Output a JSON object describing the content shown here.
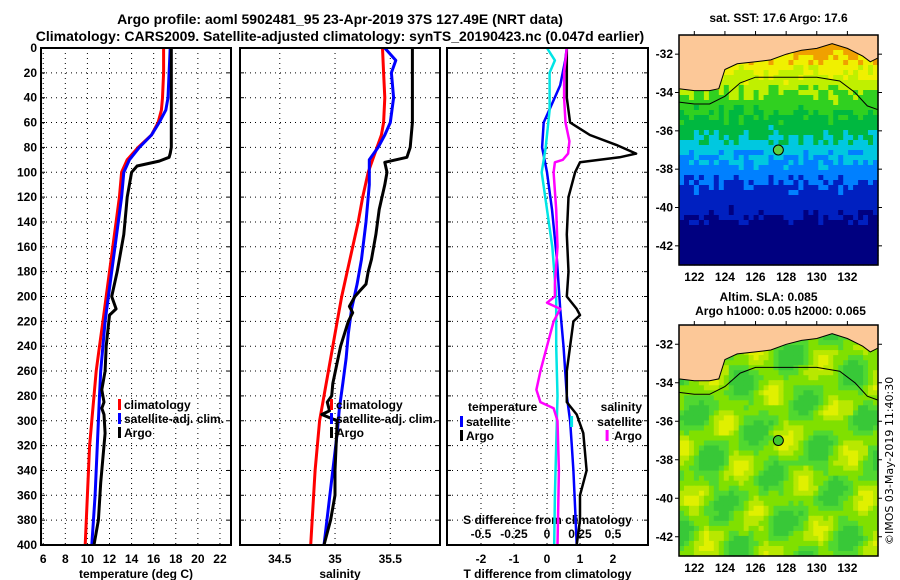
{
  "title": {
    "line1": "Argo profile: aoml 5902481_95 23-Apr-2019 37S 127.49E (NRT data)",
    "line2": "Climatology: CARS2009. Satellite-adjusted climatology: synTS_20190423.nc (0.047d earlier)"
  },
  "colors": {
    "climatology": "#ff0000",
    "satellite": "#0000ff",
    "argo": "#000000",
    "s_satellite": "#00e5e5",
    "s_argo": "#ff00ff",
    "land": "#fcc898"
  },
  "credit": "©IMOS 03-May-2019 11:40:30",
  "chart_data": [
    {
      "type": "line",
      "name": "temperature-profile",
      "xlabel": "temperature (deg C)",
      "ylabel": "",
      "xlim": [
        5.8,
        23
      ],
      "ylim": [
        400,
        0
      ],
      "xticks": [
        6,
        8,
        10,
        12,
        14,
        16,
        18,
        20,
        22
      ],
      "yticks": [
        0,
        20,
        40,
        60,
        80,
        100,
        120,
        140,
        160,
        180,
        200,
        220,
        240,
        260,
        280,
        300,
        320,
        340,
        360,
        380,
        400
      ],
      "grid": true,
      "legend": [
        {
          "label": "climatology",
          "series": "climatology"
        },
        {
          "label": "satellite-adj. clim.",
          "series": "satellite"
        },
        {
          "label": "Argo",
          "series": "argo"
        }
      ],
      "series": [
        {
          "name": "climatology",
          "x": [
            16.9,
            16.9,
            16.8,
            16.7,
            16.4,
            15.8,
            14.6,
            13.6,
            13.1,
            12.9,
            12.6,
            12.3,
            12.0,
            11.7,
            11.4,
            11.1,
            10.8,
            10.6,
            10.4,
            10.2,
            10.0,
            9.8
          ],
          "y": [
            0,
            20,
            40,
            50,
            60,
            70,
            80,
            90,
            100,
            120,
            140,
            160,
            180,
            200,
            220,
            240,
            260,
            280,
            300,
            320,
            360,
            400
          ]
        },
        {
          "name": "satellite",
          "x": [
            17.5,
            17.4,
            17.3,
            17.1,
            16.5,
            15.8,
            14.7,
            13.8,
            13.3,
            13.1,
            12.8,
            12.5,
            12.2,
            11.9,
            11.6,
            11.4,
            11.2,
            11.1,
            11.0,
            10.9,
            10.7,
            10.4
          ],
          "y": [
            0,
            20,
            40,
            50,
            60,
            70,
            80,
            90,
            100,
            120,
            140,
            160,
            180,
            200,
            220,
            240,
            260,
            280,
            300,
            320,
            360,
            400
          ]
        },
        {
          "name": "argo",
          "x": [
            17.6,
            17.6,
            17.6,
            17.6,
            17.5,
            17.4,
            16.5,
            14.5,
            14.0,
            13.8,
            13.6,
            13.5,
            13.3,
            12.9,
            12.7,
            12.2,
            12.6,
            12.0,
            11.7,
            11.6,
            11.3,
            11.5,
            11.3,
            11.5,
            11.6,
            11.4,
            11.2,
            11.0,
            10.6
          ],
          "y": [
            0,
            30,
            60,
            80,
            85,
            88,
            91,
            95,
            100,
            110,
            120,
            130,
            150,
            170,
            180,
            200,
            210,
            215,
            240,
            260,
            275,
            285,
            290,
            295,
            310,
            330,
            350,
            380,
            400
          ]
        }
      ]
    },
    {
      "type": "line",
      "name": "salinity-profile",
      "xlabel": "salinity",
      "ylabel": "",
      "xlim": [
        34.14,
        35.95
      ],
      "ylim": [
        400,
        0
      ],
      "xticks": [
        34.5,
        35,
        35.5
      ],
      "yticks": [
        0,
        20,
        40,
        60,
        80,
        100,
        120,
        140,
        160,
        180,
        200,
        220,
        240,
        260,
        280,
        300,
        320,
        340,
        360,
        380,
        400
      ],
      "grid": true,
      "legend": [
        {
          "label": "climatology",
          "series": "climatology"
        },
        {
          "label": "satellite-adj. clim.",
          "series": "satellite"
        },
        {
          "label": "Argo",
          "series": "argo"
        }
      ],
      "series": [
        {
          "name": "climatology",
          "x": [
            35.43,
            35.44,
            35.45,
            35.44,
            35.42,
            35.38,
            35.34,
            35.3,
            35.25,
            35.21,
            35.16,
            35.11,
            35.06,
            35.02,
            34.98,
            34.94,
            34.9,
            34.86,
            34.82,
            34.78
          ],
          "y": [
            0,
            20,
            40,
            60,
            70,
            80,
            90,
            100,
            120,
            140,
            160,
            180,
            200,
            220,
            240,
            260,
            280,
            300,
            340,
            400
          ]
        },
        {
          "name": "satellite",
          "x": [
            35.45,
            35.55,
            35.51,
            35.53,
            35.5,
            35.45,
            35.39,
            35.31,
            35.31,
            35.28,
            35.24,
            35.2,
            35.15,
            35.12,
            35.1,
            35.07,
            35.04,
            35.02,
            34.98,
            34.9
          ],
          "y": [
            0,
            10,
            20,
            40,
            60,
            70,
            80,
            90,
            110,
            140,
            170,
            190,
            210,
            230,
            250,
            270,
            290,
            310,
            340,
            400
          ]
        },
        {
          "name": "argo",
          "x": [
            35.7,
            35.7,
            35.7,
            35.68,
            35.65,
            35.45,
            35.47,
            35.45,
            35.4,
            35.37,
            35.33,
            35.3,
            35.28,
            35.23,
            35.18,
            35.13,
            35.16,
            35.12,
            35.05,
            34.98,
            34.97,
            34.93,
            34.95,
            34.88,
            35.02,
            35.0,
            35.0,
            34.96,
            34.9
          ],
          "y": [
            0,
            40,
            60,
            80,
            88,
            92,
            100,
            110,
            130,
            150,
            170,
            180,
            190,
            195,
            200,
            208,
            213,
            220,
            240,
            270,
            280,
            285,
            292,
            295,
            300,
            340,
            360,
            380,
            400
          ]
        }
      ]
    },
    {
      "type": "line",
      "name": "difference-profile",
      "xlabel": "T difference from climatology",
      "xlabel_top": "S difference from climatology",
      "xlim": [
        -3.03,
        3.06
      ],
      "xlim_s": [
        -0.757,
        0.765
      ],
      "ylim": [
        400,
        0
      ],
      "xticks": [
        -2,
        -1,
        0,
        1,
        2
      ],
      "xticks_s": [
        -0.5,
        -0.25,
        0,
        0.25,
        0.5
      ],
      "yticks": [
        0,
        20,
        40,
        60,
        80,
        100,
        120,
        140,
        160,
        180,
        200,
        220,
        240,
        260,
        280,
        300,
        320,
        340,
        360,
        380,
        400
      ],
      "grid": true,
      "legend": [
        {
          "heading": "temperature",
          "items": [
            {
              "label": "satellite",
              "series": "t_satellite"
            },
            {
              "label": "Argo",
              "series": "t_argo"
            }
          ]
        },
        {
          "heading": "salinity",
          "items": [
            {
              "label": "satellite",
              "series": "s_satellite"
            },
            {
              "label": "Argo",
              "series": "s_argo"
            }
          ]
        }
      ],
      "series": [
        {
          "name": "t_satellite",
          "axis": "T",
          "x": [
            0.6,
            0.55,
            0.4,
            0.15,
            -0.1,
            -0.15,
            0.0,
            0.15,
            0.3,
            0.4,
            0.5,
            0.55,
            0.6,
            0.7,
            0.75,
            0.8,
            0.85,
            0.9
          ],
          "y": [
            0,
            10,
            30,
            45,
            60,
            80,
            100,
            130,
            170,
            210,
            240,
            260,
            280,
            300,
            320,
            340,
            370,
            400
          ]
        },
        {
          "name": "t_argo",
          "axis": "T",
          "x": [
            0.6,
            0.6,
            0.7,
            1.3,
            2.1,
            2.7,
            2.2,
            1.0,
            0.85,
            0.65,
            0.6,
            0.65,
            0.6,
            0.9,
            1.0,
            0.8,
            0.6,
            0.6,
            0.9,
            1.1,
            1.2,
            1.0,
            1.0,
            0.9
          ],
          "y": [
            0,
            40,
            60,
            70,
            78,
            85,
            88,
            92,
            100,
            120,
            150,
            180,
            200,
            210,
            215,
            220,
            260,
            285,
            295,
            310,
            340,
            360,
            380,
            400
          ]
        },
        {
          "name": "s_satellite",
          "axis": "S",
          "x": [
            0.0,
            0.06,
            0.02,
            0.02,
            -0.01,
            -0.04,
            0.0,
            0.04,
            0.07,
            0.07,
            0.08,
            0.07,
            0.06,
            0.055
          ],
          "y": [
            0,
            10,
            20,
            50,
            80,
            100,
            130,
            160,
            200,
            240,
            280,
            320,
            360,
            400
          ]
        },
        {
          "name": "s_argo",
          "axis": "S",
          "x": [
            0.15,
            0.13,
            0.13,
            0.14,
            0.17,
            0.16,
            0.12,
            0.06,
            0.05,
            0.07,
            0.08,
            0.06,
            0.06,
            0.0,
            0.1,
            0.05,
            0.0,
            -0.05,
            -0.08,
            -0.05,
            0.05,
            0.08,
            0.09,
            0.08
          ],
          "y": [
            0,
            20,
            40,
            60,
            75,
            85,
            90,
            92,
            100,
            130,
            160,
            190,
            200,
            205,
            210,
            220,
            240,
            260,
            275,
            285,
            290,
            300,
            340,
            400
          ]
        }
      ]
    },
    {
      "type": "heatmap",
      "name": "sst-map",
      "title": "sat. SST: 17.6 Argo: 17.6",
      "xlim": [
        121,
        134
      ],
      "ylim": [
        -43,
        -31
      ],
      "xticks": [
        122,
        124,
        126,
        128,
        130,
        132
      ],
      "yticks": [
        -32,
        -34,
        -36,
        -38,
        -40,
        -42
      ],
      "marker": {
        "lon": 127.49,
        "lat": -37.0
      }
    },
    {
      "type": "heatmap",
      "name": "sla-map",
      "title_line1": "Altim. SLA: 0.085",
      "title_line2": "Argo h1000: 0.05 h2000: 0.065",
      "xlim": [
        121,
        134
      ],
      "ylim": [
        -43,
        -31
      ],
      "xticks": [
        122,
        124,
        126,
        128,
        130,
        132
      ],
      "yticks": [
        -32,
        -34,
        -36,
        -38,
        -40,
        -42
      ],
      "marker": {
        "lon": 127.49,
        "lat": -37.0
      }
    }
  ]
}
